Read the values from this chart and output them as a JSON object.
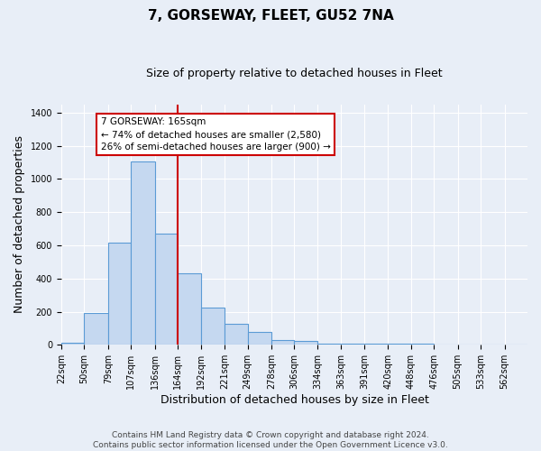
{
  "title": "7, GORSEWAY, FLEET, GU52 7NA",
  "subtitle": "Size of property relative to detached houses in Fleet",
  "xlabel": "Distribution of detached houses by size in Fleet",
  "ylabel": "Number of detached properties",
  "footer_line1": "Contains HM Land Registry data © Crown copyright and database right 2024.",
  "footer_line2": "Contains public sector information licensed under the Open Government Licence v3.0.",
  "bin_edges": [
    22,
    50,
    79,
    107,
    136,
    164,
    192,
    221,
    249,
    278,
    306,
    334,
    363,
    391,
    420,
    448,
    476,
    505,
    533,
    562,
    590
  ],
  "bar_heights": [
    15,
    190,
    615,
    1105,
    670,
    430,
    225,
    125,
    80,
    30,
    25,
    10,
    10,
    5,
    5,
    5,
    2,
    2,
    2,
    2
  ],
  "bar_color": "#c5d8f0",
  "bar_edge_color": "#5b9bd5",
  "bar_linewidth": 0.8,
  "vline_x": 164,
  "vline_color": "#cc0000",
  "vline_linewidth": 1.5,
  "annotation_title": "7 GORSEWAY: 165sqm",
  "annotation_line1": "← 74% of detached houses are smaller (2,580)",
  "annotation_line2": "26% of semi-detached houses are larger (900) →",
  "ylim": [
    0,
    1450
  ],
  "yticks": [
    0,
    200,
    400,
    600,
    800,
    1000,
    1200,
    1400
  ],
  "bg_color": "#e8eef7",
  "plot_bg_color": "#e8eef7",
  "grid_color": "#ffffff",
  "title_fontsize": 11,
  "subtitle_fontsize": 9,
  "axis_label_fontsize": 9,
  "tick_label_fontsize": 7,
  "footer_fontsize": 6.5
}
